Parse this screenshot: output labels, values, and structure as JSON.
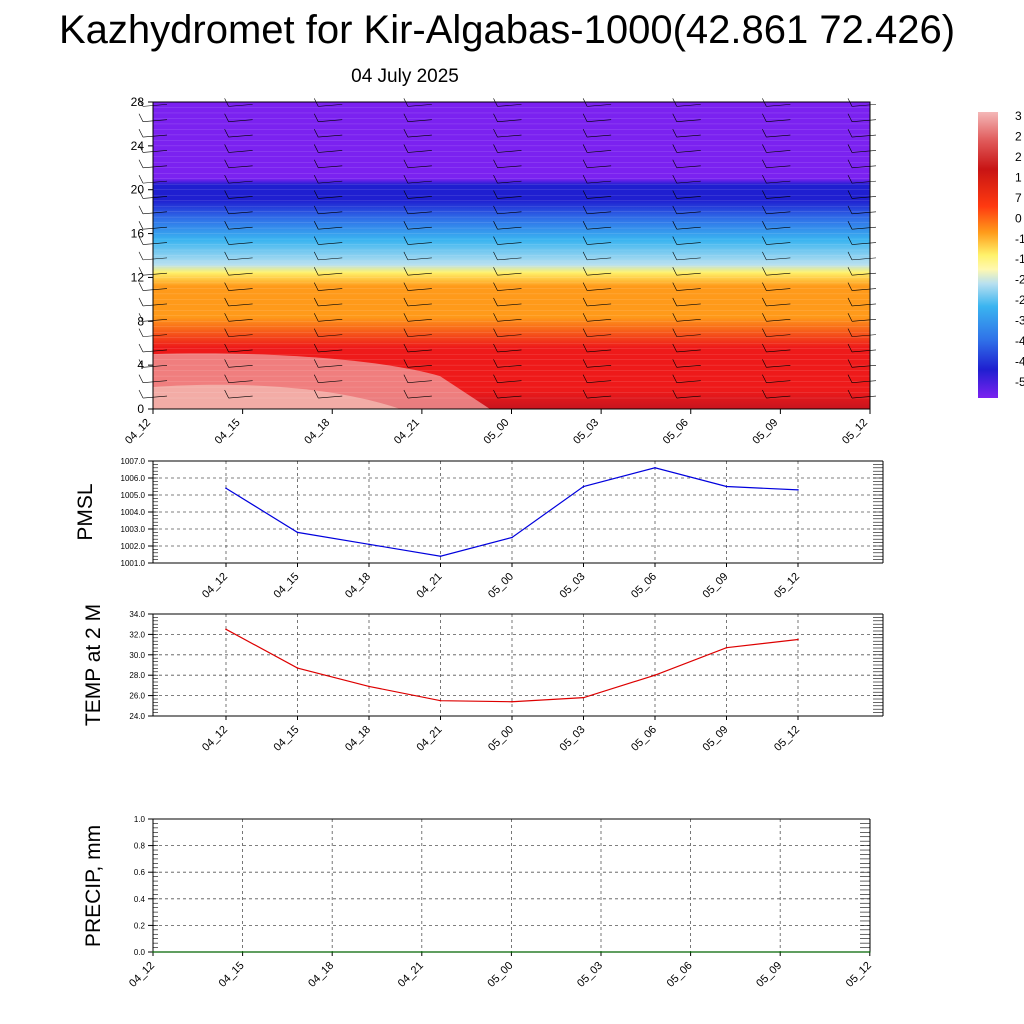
{
  "title": "Kazhydromet for Kir-Algabas-1000(42.861 72.426)",
  "subtitle": "04 July 2025",
  "time_labels": [
    "04_12",
    "04_15",
    "04_18",
    "04_21",
    "05_00",
    "05_03",
    "05_06",
    "05_09",
    "05_12"
  ],
  "chart_data": [
    {
      "type": "heatmap",
      "name": "vertical-cross-section",
      "x": [
        "04_12",
        "04_15",
        "04_18",
        "04_21",
        "05_00",
        "05_03",
        "05_06",
        "05_09",
        "05_12"
      ],
      "y_ticks": [
        0,
        4,
        8,
        12,
        16,
        20,
        24,
        28
      ],
      "ylim": [
        0,
        28
      ],
      "colorbar_labels": [
        "3",
        "2",
        "2",
        "1",
        "7",
        "0",
        "-1",
        "-1",
        "-2",
        "-2",
        "-3",
        "-4",
        "-4",
        "-5"
      ],
      "colors": {
        "top": "#7b22f0",
        "deep_blue": "#1f1fd0",
        "blue": "#2f6fe8",
        "light_blue": "#3ab4f0",
        "pale_blue": "#b8e0f0",
        "yellow": "#fff26a",
        "orange": "#ff9a1a",
        "red": "#ee1a1a",
        "dark_red": "#c8141e",
        "pink": "#f0a0a0"
      },
      "wind_barbs": true
    },
    {
      "type": "line",
      "name": "pmsl",
      "ylabel": "PMSL",
      "x": [
        "04_12",
        "04_15",
        "04_18",
        "04_21",
        "05_00",
        "05_03",
        "05_06",
        "05_09",
        "05_12"
      ],
      "series": [
        {
          "values": [
            1005.4,
            1002.8,
            1002.1,
            1001.4,
            1002.5,
            1005.5,
            1006.6,
            1005.5,
            1005.3
          ],
          "color": "#0000dd"
        }
      ],
      "ylim": [
        1001.0,
        1007.0
      ],
      "y_ticks": [
        "1001.0",
        "1002.0",
        "1003.0",
        "1004.0",
        "1005.0",
        "1006.0",
        "1007.0"
      ],
      "grid": true
    },
    {
      "type": "line",
      "name": "temp-2m",
      "ylabel": "TEMP at 2 M",
      "x": [
        "04_12",
        "04_15",
        "04_18",
        "04_21",
        "05_00",
        "05_03",
        "05_06",
        "05_09",
        "05_12"
      ],
      "series": [
        {
          "values": [
            32.5,
            28.7,
            26.9,
            25.5,
            25.4,
            25.8,
            28.0,
            30.7,
            31.5
          ],
          "color": "#dd0000"
        }
      ],
      "ylim": [
        24.0,
        34.0
      ],
      "y_ticks": [
        "24.0",
        "26.0",
        "28.0",
        "30.0",
        "32.0",
        "34.0"
      ],
      "grid": true
    },
    {
      "type": "line",
      "name": "precip",
      "ylabel": "PRECIP, mm",
      "x": [
        "04_12",
        "04_15",
        "04_18",
        "04_21",
        "05_00",
        "05_03",
        "05_06",
        "05_09",
        "05_12"
      ],
      "series": [
        {
          "values": [
            0,
            0,
            0,
            0,
            0,
            0,
            0,
            0,
            0
          ],
          "color": "#006400"
        }
      ],
      "ylim": [
        0.0,
        1.0
      ],
      "y_ticks": [
        "0.0",
        "0.2",
        "0.4",
        "0.6",
        "0.8",
        "1.0"
      ],
      "grid": true
    }
  ]
}
